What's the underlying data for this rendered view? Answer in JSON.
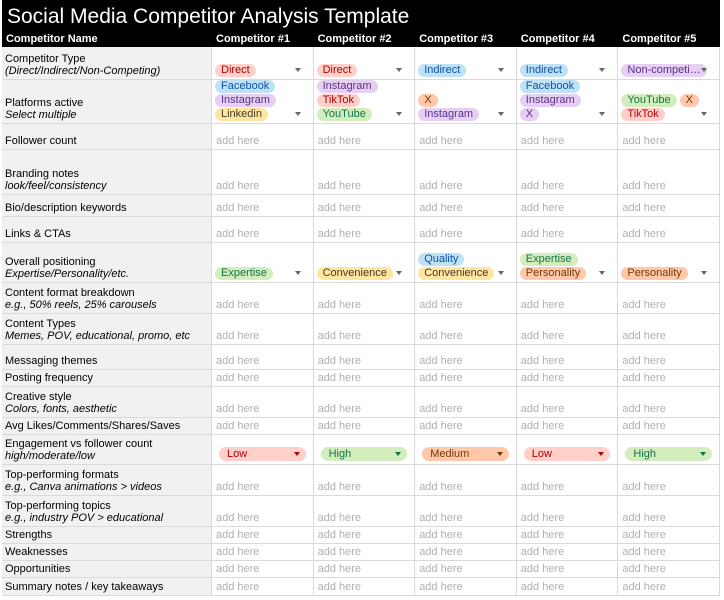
{
  "title": "Social Media Competitor Analysis Template",
  "header": [
    "Competitor Name",
    "Competitor #1",
    "Competitor #2",
    "Competitor #3",
    "Competitor #4",
    "Competitor #5"
  ],
  "palette": {
    "red": {
      "bg": "#ffcfc9",
      "fg": "#b10202"
    },
    "blue": {
      "bg": "#bfe1f6",
      "fg": "#0a53a8"
    },
    "purple": {
      "bg": "#e6cff2",
      "fg": "#5a3286"
    },
    "yellow": {
      "bg": "#ffe5a0",
      "fg": "#473821"
    },
    "green": {
      "bg": "#d4edbc",
      "fg": "#11734b"
    },
    "orange": {
      "bg": "#ffc8aa",
      "fg": "#753800"
    }
  },
  "rows": [
    {
      "label": "Competitor Type",
      "sublabel": "(Direct/Indirect/Non-Competing)",
      "cells": [
        {
          "lines": [
            [
              {
                "text": "Direct",
                "tone": "red"
              }
            ]
          ]
        },
        {
          "lines": [
            [
              {
                "text": "Direct",
                "tone": "red"
              }
            ]
          ]
        },
        {
          "lines": [
            [
              {
                "text": "Indirect",
                "tone": "blue"
              }
            ]
          ]
        },
        {
          "lines": [
            [
              {
                "text": "Indirect",
                "tone": "blue"
              }
            ]
          ]
        },
        {
          "lines": [
            [
              {
                "text": "Non-competi…",
                "tone": "purple"
              }
            ]
          ]
        }
      ]
    },
    {
      "label": "Platforms active",
      "sublabel": "Select multiple",
      "cells": [
        {
          "lines": [
            [
              {
                "text": "Facebook",
                "tone": "blue"
              }
            ],
            [
              {
                "text": "Instagram",
                "tone": "purple"
              }
            ],
            [
              {
                "text": "Linkedin",
                "tone": "yellow"
              }
            ]
          ]
        },
        {
          "lines": [
            [
              {
                "text": "Instagram",
                "tone": "purple"
              }
            ],
            [
              {
                "text": "TikTok",
                "tone": "red"
              }
            ],
            [
              {
                "text": "YouTube",
                "tone": "green"
              }
            ]
          ]
        },
        {
          "lines": [
            [
              {
                "text": "X",
                "tone": "orange"
              }
            ],
            [
              {
                "text": "Instagram",
                "tone": "purple"
              }
            ]
          ]
        },
        {
          "lines": [
            [
              {
                "text": "Facebook",
                "tone": "blue"
              }
            ],
            [
              {
                "text": "Instagram",
                "tone": "purple"
              }
            ],
            [
              {
                "text": "X",
                "tone": "purple"
              }
            ]
          ]
        },
        {
          "lines": [
            [
              {
                "text": "YouTube",
                "tone": "green"
              },
              {
                "text": "X",
                "tone": "orange"
              }
            ],
            [
              {
                "text": "TikTok",
                "tone": "red"
              }
            ]
          ]
        }
      ]
    },
    {
      "label": "Follower count",
      "cells": [
        "add here",
        "add here",
        "add here",
        "add here",
        "add here"
      ]
    },
    {
      "label": "Branding notes",
      "sublabel": "look/feel/consistency",
      "cells": [
        "add here",
        "add here",
        "add here",
        "add here",
        "add here"
      ]
    },
    {
      "label": "Bio/description keywords",
      "cells": [
        "add here",
        "add here",
        "add here",
        "add here",
        "add here"
      ]
    },
    {
      "label": "Links & CTAs",
      "cells": [
        "add here",
        "add here",
        "add here",
        "add here",
        "add here"
      ]
    },
    {
      "label": "Overall positioning",
      "sublabel": "Expertise/Personality/etc.",
      "cells": [
        {
          "lines": [
            [
              {
                "text": "Expertise",
                "tone": "green"
              }
            ]
          ]
        },
        {
          "lines": [
            [
              {
                "text": "Convenience",
                "tone": "yellow"
              }
            ]
          ]
        },
        {
          "lines": [
            [
              {
                "text": "Quality",
                "tone": "blue"
              }
            ],
            [
              {
                "text": "Convenience",
                "tone": "yellow"
              }
            ]
          ]
        },
        {
          "lines": [
            [
              {
                "text": "Expertise",
                "tone": "green"
              }
            ],
            [
              {
                "text": "Personality",
                "tone": "orange"
              }
            ]
          ]
        },
        {
          "lines": [
            [
              {
                "text": "Personality",
                "tone": "orange"
              }
            ]
          ]
        }
      ]
    },
    {
      "label": "Content format breakdown",
      "sublabel": "e.g., 50% reels, 25% carousels",
      "cells": [
        "add here",
        "add here",
        "add here",
        "add here",
        "add here"
      ]
    },
    {
      "label": "Content Types",
      "sublabel": "Memes, POV, educational, promo, etc",
      "cells": [
        "add here",
        "add here",
        "add here",
        "add here",
        "add here"
      ]
    },
    {
      "label": "Messaging themes",
      "cells": [
        "add here",
        "add here",
        "add here",
        "add here",
        "add here"
      ]
    },
    {
      "label": "Posting frequency",
      "cells": [
        "add here",
        "add here",
        "add here",
        "add here",
        "add here"
      ]
    },
    {
      "label": "Creative style",
      "sublabel": "Colors, fonts, aesthetic",
      "cells": [
        "add here",
        "add here",
        "add here",
        "add here",
        "add here"
      ]
    },
    {
      "label": "Avg Likes/Comments/Shares/Saves",
      "cells": [
        "add here",
        "add here",
        "add here",
        "add here",
        "add here"
      ]
    },
    {
      "label": "Engagement vs follower count",
      "sublabel": "high/moderate/low",
      "cells": [
        {
          "select": {
            "text": "Low",
            "tone": "red"
          }
        },
        {
          "select": {
            "text": "High",
            "tone": "green"
          }
        },
        {
          "select": {
            "text": "Medium",
            "tone": "orange"
          }
        },
        {
          "select": {
            "text": "Low",
            "tone": "red"
          }
        },
        {
          "select": {
            "text": "High",
            "tone": "green"
          }
        }
      ]
    },
    {
      "label": "Top-performing formats",
      "sublabel": "e.g., Canva animations > videos",
      "cells": [
        "add here",
        "add here",
        "add here",
        "add here",
        "add here"
      ]
    },
    {
      "label": "Top-performing topics",
      "sublabel": "e.g., industry POV > educational",
      "cells": [
        "add here",
        "add here",
        "add here",
        "add here",
        "add here"
      ]
    },
    {
      "label": "Strengths",
      "cells": [
        "add here",
        "add here",
        "add here",
        "add here",
        "add here"
      ]
    },
    {
      "label": "Weaknesses",
      "cells": [
        "add here",
        "add here",
        "add here",
        "add here",
        "add here"
      ]
    },
    {
      "label": "Opportunities",
      "cells": [
        "add here",
        "add here",
        "add here",
        "add here",
        "add here"
      ]
    },
    {
      "label": "Summary notes / key takeaways",
      "cells": [
        "add here",
        "add here",
        "add here",
        "add here",
        "add here"
      ]
    }
  ]
}
